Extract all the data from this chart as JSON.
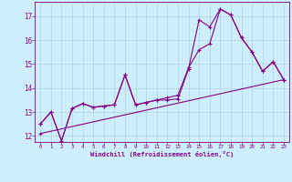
{
  "xlabel": "Windchill (Refroidissement éolien,°C)",
  "background_color": "#cceeff",
  "line_color": "#880088",
  "x": [
    0,
    1,
    2,
    3,
    4,
    5,
    6,
    7,
    8,
    9,
    10,
    11,
    12,
    13,
    14,
    15,
    16,
    17,
    18,
    19,
    20,
    21,
    22,
    23
  ],
  "line1": [
    12.5,
    13.0,
    11.8,
    13.15,
    13.35,
    13.2,
    13.25,
    13.3,
    14.55,
    13.3,
    13.4,
    13.5,
    13.5,
    13.55,
    14.8,
    16.85,
    16.55,
    17.3,
    17.05,
    16.1,
    15.5,
    14.7,
    15.1,
    14.35
  ],
  "line2": [
    12.5,
    13.0,
    11.8,
    13.15,
    13.35,
    13.2,
    13.25,
    13.3,
    14.55,
    13.3,
    13.4,
    13.5,
    13.6,
    13.7,
    14.85,
    15.6,
    15.85,
    17.3,
    17.05,
    16.1,
    15.5,
    14.7,
    15.1,
    14.35
  ],
  "line3_x": [
    0,
    23
  ],
  "line3_y": [
    12.1,
    14.35
  ],
  "ylim": [
    11.75,
    17.6
  ],
  "yticks": [
    12,
    13,
    14,
    15,
    16,
    17
  ],
  "xticks": [
    0,
    1,
    2,
    3,
    4,
    5,
    6,
    7,
    8,
    9,
    10,
    11,
    12,
    13,
    14,
    15,
    16,
    17,
    18,
    19,
    20,
    21,
    22,
    23
  ]
}
